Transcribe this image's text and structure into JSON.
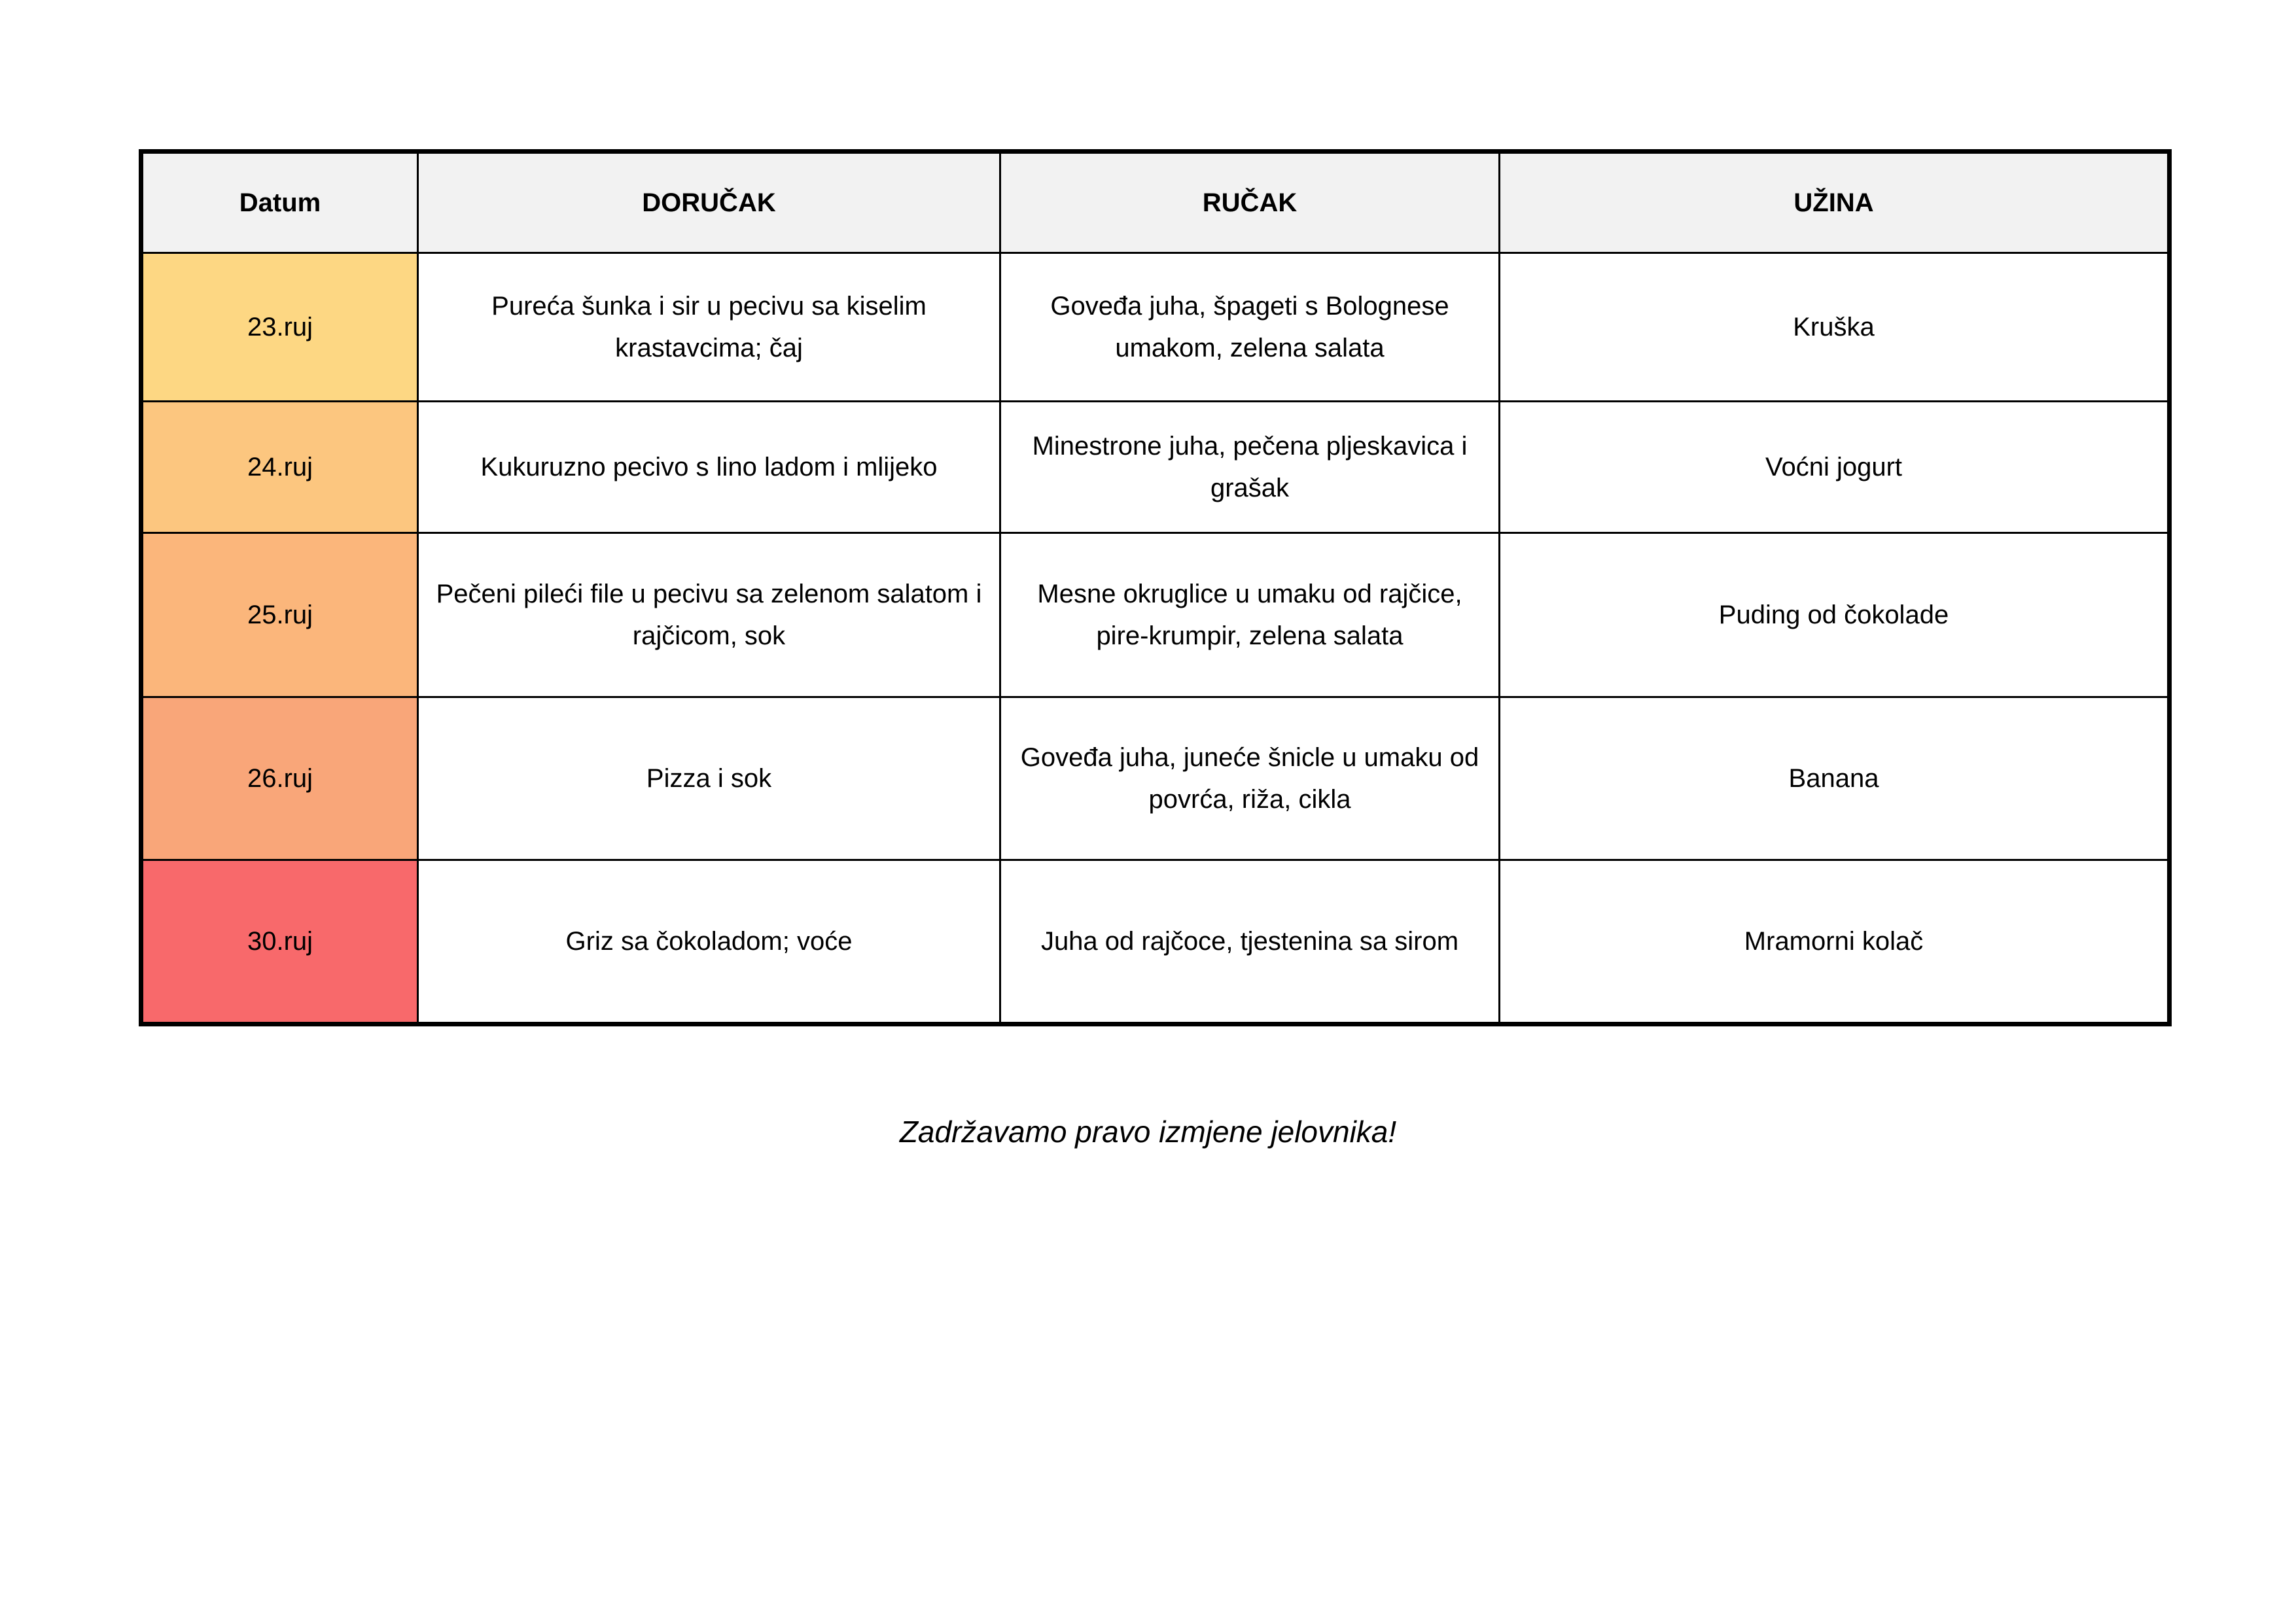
{
  "table": {
    "headers": {
      "date": "Datum",
      "breakfast": "DORUČAK",
      "lunch": "RUČAK",
      "snack": "UŽINA"
    },
    "rows": [
      {
        "date": "23.ruj",
        "date_color": "#fdd783",
        "breakfast": "Pureća šunka i sir u pecivu sa kiselim krastavcima; čaj",
        "lunch": "Goveđa juha, špageti s Bolognese umakom, zelena salata",
        "snack": "Kruška"
      },
      {
        "date": "24.ruj",
        "date_color": "#fcc67f",
        "breakfast": "Kukuruzno pecivo s lino ladom i mlijeko",
        "lunch": "Minestrone juha, pečena pljeskavica i grašak",
        "snack": "Voćni jogurt"
      },
      {
        "date": "25.ruj",
        "date_color": "#fbb67b",
        "breakfast": "Pečeni pileći file u pecivu sa zelenom salatom i rajčicom, sok",
        "lunch": "Mesne okruglice u umaku od rajčice, pire-krumpir, zelena salata",
        "snack": "Puding od čokolade"
      },
      {
        "date": "26.ruj",
        "date_color": "#f9a679",
        "breakfast": "Pizza i sok",
        "lunch": "Goveđa juha, juneće šnicle u umaku od povrća, riža, cikla",
        "snack": "Banana"
      },
      {
        "date": "30.ruj",
        "date_color": "#f8696b",
        "breakfast": "Griz sa čokoladom; voće",
        "lunch": "Juha od rajčoce, tjestenina sa sirom",
        "snack": "Mramorni kolač"
      }
    ]
  },
  "footer_note": "Zadržavamo pravo izmjene jelovnika!"
}
